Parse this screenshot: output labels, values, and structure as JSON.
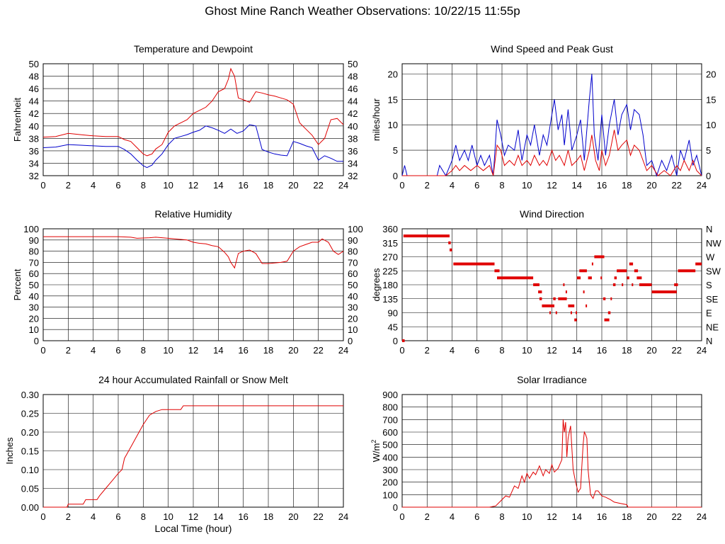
{
  "title": "Ghost Mine Ranch Weather Observations: 10/22/15 11:55p",
  "colors": {
    "series_red": "#e00000",
    "series_blue": "#0000cc",
    "grid": "#000000"
  },
  "chart_data": [
    {
      "id": "temp",
      "type": "line",
      "title": "Temperature and Dewpoint",
      "xlabel": "",
      "ylabel": "Fahrenheit",
      "xlim": [
        0,
        24
      ],
      "ylim": [
        32,
        50
      ],
      "xticks": [
        0,
        2,
        4,
        6,
        8,
        10,
        12,
        14,
        16,
        18,
        20,
        22,
        24
      ],
      "yticks": [
        32,
        34,
        36,
        38,
        40,
        42,
        44,
        46,
        48,
        50
      ],
      "right_ticks": [
        "32",
        "34",
        "36",
        "38",
        "40",
        "42",
        "44",
        "46",
        "48",
        "50"
      ],
      "grid": true,
      "series": [
        {
          "color": "#e00000",
          "x": [
            0,
            1,
            2,
            3,
            4,
            5,
            6,
            6.5,
            7,
            7.5,
            8,
            8.3,
            8.7,
            9,
            9.5,
            10,
            10.5,
            11,
            11.5,
            12,
            12.5,
            13,
            13.5,
            14,
            14.5,
            14.8,
            15,
            15.3,
            15.6,
            16,
            16.5,
            17,
            17.5,
            18,
            18.5,
            19,
            19.5,
            20,
            20.5,
            21,
            21.5,
            22,
            22.5,
            23,
            23.5,
            24
          ],
          "y": [
            38.2,
            38.3,
            38.8,
            38.6,
            38.4,
            38.3,
            38.3,
            37.8,
            37.5,
            36.5,
            35.5,
            35.2,
            35.5,
            36.3,
            37,
            39,
            40,
            40.5,
            41,
            42,
            42.5,
            43,
            44,
            45.5,
            46,
            47.5,
            49.2,
            48,
            44.5,
            44.2,
            43.8,
            45.5,
            45.3,
            45,
            44.8,
            44.5,
            44.2,
            43.5,
            40.5,
            39.5,
            38.5,
            37,
            38,
            41,
            41.2,
            40.2
          ]
        },
        {
          "color": "#0000cc",
          "x": [
            0,
            1,
            2,
            3,
            4,
            5,
            6,
            6.5,
            7,
            7.5,
            8,
            8.3,
            8.7,
            9,
            9.5,
            10,
            10.5,
            11,
            11.5,
            12,
            12.5,
            13,
            13.5,
            14,
            14.5,
            15,
            15.5,
            16,
            16.5,
            17,
            17.5,
            18,
            18.5,
            19,
            19.5,
            20,
            20.5,
            21,
            21.5,
            22,
            22.5,
            23,
            23.5,
            24
          ],
          "y": [
            36.5,
            36.6,
            37,
            36.9,
            36.8,
            36.7,
            36.7,
            36.2,
            35.5,
            34.5,
            33.6,
            33.3,
            33.7,
            34.5,
            35.5,
            37,
            38,
            38.3,
            38.6,
            39,
            39.3,
            40,
            39.7,
            39.3,
            38.8,
            39.5,
            38.8,
            39.2,
            40.2,
            40,
            36.2,
            35.8,
            35.5,
            35.3,
            35.2,
            37.5,
            37.2,
            36.8,
            36.5,
            34.5,
            35.2,
            34.8,
            34.3,
            34.3
          ]
        }
      ]
    },
    {
      "id": "wind",
      "type": "line",
      "title": "Wind Speed and Peak Gust",
      "xlabel": "",
      "ylabel": "miles/hour",
      "xlim": [
        0,
        24
      ],
      "ylim": [
        0,
        22
      ],
      "xticks": [
        0,
        2,
        4,
        6,
        8,
        10,
        12,
        14,
        16,
        18,
        20,
        22,
        24
      ],
      "yticks": [
        0,
        5,
        10,
        15,
        20
      ],
      "right_ticks": [
        "0",
        "5",
        "10",
        "15",
        "20"
      ],
      "grid": true,
      "series": [
        {
          "color": "#0000cc",
          "x": [
            0,
            0.2,
            0.4,
            0.6,
            1,
            2,
            2.8,
            3,
            3.5,
            4,
            4.3,
            4.6,
            5,
            5.3,
            5.6,
            6,
            6.3,
            6.6,
            7,
            7.3,
            7.6,
            7.9,
            8.2,
            8.5,
            9,
            9.3,
            9.6,
            10,
            10.3,
            10.6,
            11,
            11.3,
            11.6,
            12,
            12.2,
            12.5,
            12.8,
            13,
            13.3,
            13.6,
            14,
            14.3,
            14.6,
            15,
            15.2,
            15.4,
            15.7,
            16,
            16.3,
            16.6,
            17,
            17.3,
            17.6,
            18,
            18.3,
            18.6,
            19,
            19.3,
            19.6,
            20,
            20.4,
            20.8,
            21.2,
            21.6,
            22,
            22.3,
            22.6,
            23,
            23.3,
            23.6,
            24
          ],
          "y": [
            0,
            2,
            0,
            0,
            0,
            0,
            0,
            2,
            0,
            3,
            6,
            3,
            5,
            3,
            6,
            2,
            4,
            2,
            4,
            0,
            11,
            8,
            4,
            6,
            5,
            9,
            3,
            8,
            6,
            10,
            4,
            8,
            6,
            12,
            15,
            9,
            12,
            6,
            13,
            5,
            8,
            11,
            3,
            15,
            20,
            8,
            3,
            12,
            4,
            10,
            15,
            8,
            12,
            14,
            9,
            13,
            12,
            8,
            2,
            3,
            0,
            3,
            1,
            4,
            0,
            5,
            3,
            7,
            2,
            4,
            0
          ]
        },
        {
          "color": "#e00000",
          "x": [
            0,
            3,
            3.5,
            4,
            4.3,
            4.6,
            5,
            5.5,
            6,
            6.5,
            7,
            7.3,
            7.6,
            7.9,
            8.2,
            8.6,
            9,
            9.3,
            9.6,
            10,
            10.3,
            10.6,
            11,
            11.3,
            11.6,
            12,
            12.3,
            12.6,
            13,
            13.3,
            13.6,
            14,
            14.3,
            14.6,
            15,
            15.2,
            15.5,
            15.8,
            16,
            16.3,
            16.6,
            17,
            17.3,
            17.6,
            18,
            18.3,
            18.6,
            19,
            19.3,
            19.6,
            20,
            20.5,
            21,
            21.5,
            22,
            22.3,
            22.6,
            23,
            23.3,
            23.6,
            24
          ],
          "y": [
            0,
            0,
            0,
            1,
            2,
            1,
            2,
            1,
            2,
            1,
            2,
            0,
            6,
            5,
            2,
            3,
            2,
            4,
            2,
            3,
            2,
            4,
            2,
            3,
            2,
            5,
            3,
            4,
            2,
            5,
            2,
            3,
            4,
            1,
            5,
            8,
            3,
            1,
            5,
            2,
            4,
            9,
            5,
            6,
            7,
            4,
            6,
            5,
            3,
            1,
            2,
            0,
            1,
            0,
            2,
            1,
            3,
            1,
            3,
            1,
            0
          ]
        }
      ]
    },
    {
      "id": "rh",
      "type": "line",
      "title": "Relative Humidity",
      "xlabel": "",
      "ylabel": "Percent",
      "xlim": [
        0,
        24
      ],
      "ylim": [
        0,
        100
      ],
      "xticks": [
        0,
        2,
        4,
        6,
        8,
        10,
        12,
        14,
        16,
        18,
        20,
        22,
        24
      ],
      "yticks": [
        0,
        10,
        20,
        30,
        40,
        50,
        60,
        70,
        80,
        90,
        100
      ],
      "right_ticks": [
        "0",
        "10",
        "20",
        "30",
        "40",
        "50",
        "60",
        "70",
        "80",
        "90",
        "100"
      ],
      "grid": true,
      "series": [
        {
          "color": "#e00000",
          "x": [
            0,
            2,
            4,
            6,
            7,
            7.5,
            8.5,
            9,
            9.5,
            10,
            11,
            11.5,
            12,
            12.5,
            13,
            13.5,
            14,
            14.5,
            14.8,
            15,
            15.3,
            15.6,
            16,
            16.5,
            17,
            17.5,
            18,
            19,
            19.5,
            20,
            20.5,
            21,
            21.5,
            22,
            22.3,
            22.8,
            23.2,
            23.6,
            24
          ],
          "y": [
            93,
            93,
            93,
            93,
            92.5,
            91.5,
            92,
            92.5,
            92,
            91.5,
            90.5,
            90,
            88,
            87,
            86.5,
            85,
            84,
            79,
            75,
            70,
            65,
            78,
            80,
            81,
            78,
            69,
            69,
            70,
            71,
            80,
            84,
            86,
            88,
            88,
            91,
            88,
            80,
            77,
            80
          ]
        }
      ]
    },
    {
      "id": "wdir",
      "type": "scatter",
      "title": "Wind Direction",
      "xlabel": "",
      "ylabel": "degrees",
      "xlim": [
        0,
        24
      ],
      "ylim": [
        0,
        360
      ],
      "xticks": [
        0,
        2,
        4,
        6,
        8,
        10,
        12,
        14,
        16,
        18,
        20,
        22,
        24
      ],
      "yticks": [
        0,
        45,
        90,
        135,
        180,
        225,
        270,
        315,
        360
      ],
      "right_ticks": [
        "N",
        "NE",
        "E",
        "SE",
        "S",
        "SW",
        "W",
        "NW",
        "N"
      ],
      "grid": true,
      "segments": [
        [
          0,
          0.2,
          0
        ],
        [
          0.1,
          3.8,
          337
        ],
        [
          3.7,
          3.9,
          315
        ],
        [
          3.8,
          4.0,
          292
        ],
        [
          4.1,
          7.4,
          247
        ],
        [
          7.4,
          7.8,
          225
        ],
        [
          7.6,
          10.5,
          202
        ],
        [
          10.5,
          11.0,
          180
        ],
        [
          10.9,
          11.2,
          157
        ],
        [
          11.0,
          11.2,
          135
        ],
        [
          11.2,
          12.2,
          112
        ],
        [
          11.8,
          11.9,
          90
        ],
        [
          12.1,
          12.3,
          135
        ],
        [
          12.3,
          12.4,
          90
        ],
        [
          12.5,
          13.2,
          135
        ],
        [
          12.9,
          13.0,
          180
        ],
        [
          13.1,
          13.2,
          157
        ],
        [
          13.3,
          13.8,
          112
        ],
        [
          13.5,
          13.6,
          90
        ],
        [
          13.8,
          14.0,
          67
        ],
        [
          13.9,
          14.0,
          90
        ],
        [
          14.0,
          14.3,
          202
        ],
        [
          14.2,
          14.8,
          225
        ],
        [
          14.5,
          14.6,
          157
        ],
        [
          14.7,
          14.8,
          112
        ],
        [
          14.9,
          15.2,
          202
        ],
        [
          15.2,
          15.3,
          247
        ],
        [
          15.4,
          16.2,
          270
        ],
        [
          15.9,
          16.0,
          202
        ],
        [
          16.1,
          16.3,
          135
        ],
        [
          16.2,
          16.6,
          67
        ],
        [
          16.5,
          16.7,
          90
        ],
        [
          16.7,
          16.8,
          135
        ],
        [
          16.9,
          17.1,
          180
        ],
        [
          17.0,
          17.2,
          202
        ],
        [
          17.2,
          18.0,
          225
        ],
        [
          17.6,
          17.7,
          180
        ],
        [
          18.0,
          18.2,
          202
        ],
        [
          18.2,
          18.5,
          247
        ],
        [
          18.4,
          18.5,
          180
        ],
        [
          18.6,
          18.9,
          225
        ],
        [
          18.8,
          19.2,
          202
        ],
        [
          19.0,
          20.0,
          180
        ],
        [
          20.0,
          22.0,
          157
        ],
        [
          21.8,
          22.1,
          180
        ],
        [
          22.1,
          23.5,
          225
        ],
        [
          23.5,
          24.0,
          247
        ]
      ]
    },
    {
      "id": "rain",
      "type": "line",
      "title": "24 hour Accumulated Rainfall or Snow Melt",
      "xlabel": "Local Time (hour)",
      "ylabel": "Inches",
      "xlim": [
        0,
        24
      ],
      "ylim": [
        0,
        0.3
      ],
      "xticks": [
        0,
        2,
        4,
        6,
        8,
        10,
        12,
        14,
        16,
        18,
        20,
        22,
        24
      ],
      "yticks": [
        0,
        0.05,
        0.1,
        0.15,
        0.2,
        0.25,
        0.3
      ],
      "ytick_labels": [
        "0.00",
        "0.05",
        "0.10",
        "0.15",
        "0.20",
        "0.25",
        "0.30"
      ],
      "grid": true,
      "series": [
        {
          "color": "#e00000",
          "x": [
            0,
            1.9,
            2.0,
            3.2,
            3.4,
            4.3,
            4.5,
            5.0,
            5.5,
            6.0,
            6.3,
            6.5,
            7.0,
            7.5,
            8.0,
            8.5,
            9.0,
            9.5,
            10.0,
            11.0,
            11.2,
            12,
            24
          ],
          "y": [
            0,
            0,
            0.008,
            0.008,
            0.02,
            0.02,
            0.03,
            0.05,
            0.07,
            0.09,
            0.1,
            0.13,
            0.16,
            0.19,
            0.22,
            0.245,
            0.255,
            0.26,
            0.26,
            0.26,
            0.27,
            0.27,
            0.27
          ]
        }
      ]
    },
    {
      "id": "solar",
      "type": "line",
      "title": "Solar Irradiance",
      "xlabel": "",
      "ylabel": "W/m2",
      "xlim": [
        0,
        24
      ],
      "ylim": [
        0,
        900
      ],
      "xticks": [
        0,
        2,
        4,
        6,
        8,
        10,
        12,
        14,
        16,
        18,
        20,
        22,
        24
      ],
      "yticks": [
        0,
        100,
        200,
        300,
        400,
        500,
        600,
        700,
        800,
        900
      ],
      "grid": true,
      "series": [
        {
          "color": "#e00000",
          "x": [
            0,
            7.0,
            7.5,
            8.0,
            8.3,
            8.6,
            9.0,
            9.3,
            9.6,
            9.8,
            10.0,
            10.2,
            10.5,
            10.7,
            11.0,
            11.3,
            11.5,
            11.8,
            12.0,
            12.2,
            12.5,
            12.8,
            12.9,
            13.0,
            13.1,
            13.2,
            13.3,
            13.5,
            13.7,
            13.9,
            14.1,
            14.3,
            14.5,
            14.6,
            14.7,
            14.8,
            14.9,
            15.1,
            15.3,
            15.5,
            15.7,
            16.0,
            16.3,
            16.7,
            17.0,
            17.5,
            18.0,
            18.1,
            24
          ],
          "y": [
            0,
            0,
            10,
            60,
            90,
            80,
            170,
            150,
            250,
            200,
            270,
            230,
            280,
            260,
            330,
            250,
            300,
            270,
            340,
            280,
            310,
            380,
            700,
            600,
            680,
            400,
            550,
            650,
            300,
            200,
            120,
            150,
            500,
            600,
            580,
            550,
            300,
            100,
            70,
            130,
            130,
            90,
            80,
            60,
            40,
            30,
            20,
            0,
            0
          ]
        }
      ]
    }
  ]
}
